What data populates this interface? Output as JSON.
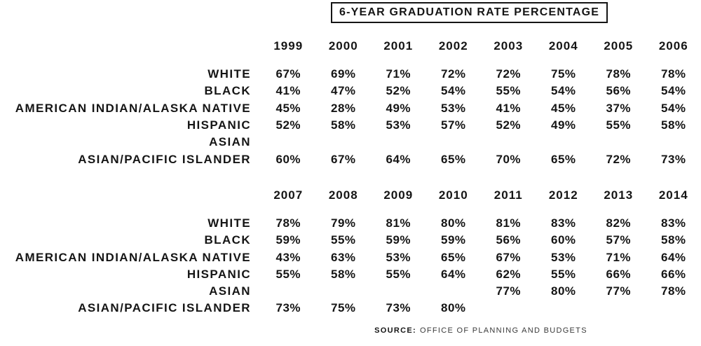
{
  "title": "6-YEAR GRADUATION RATE PERCENTAGE",
  "source": {
    "label": "SOURCE:",
    "text": "OFFICE OF PLANNING AND BUDGETS"
  },
  "chart_data": {
    "type": "table",
    "title": "6-YEAR GRADUATION RATE PERCENTAGE",
    "unit": "percent",
    "sections": [
      {
        "years": [
          "1999",
          "2000",
          "2001",
          "2002",
          "2003",
          "2004",
          "2005",
          "2006"
        ],
        "rows": [
          {
            "label": "WHITE",
            "values": [
              "67%",
              "69%",
              "71%",
              "72%",
              "72%",
              "75%",
              "78%",
              "78%"
            ]
          },
          {
            "label": "BLACK",
            "values": [
              "41%",
              "47%",
              "52%",
              "54%",
              "55%",
              "54%",
              "56%",
              "54%"
            ]
          },
          {
            "label": "AMERICAN INDIAN/ALASKA NATIVE",
            "values": [
              "45%",
              "28%",
              "49%",
              "53%",
              "41%",
              "45%",
              "37%",
              "54%"
            ]
          },
          {
            "label": "HISPANIC",
            "values": [
              "52%",
              "58%",
              "53%",
              "57%",
              "52%",
              "49%",
              "55%",
              "58%"
            ]
          },
          {
            "label": "ASIAN",
            "values": [
              "",
              "",
              "",
              "",
              "",
              "",
              "",
              ""
            ]
          },
          {
            "label": "ASIAN/PACIFIC ISLANDER",
            "values": [
              "60%",
              "67%",
              "64%",
              "65%",
              "70%",
              "65%",
              "72%",
              "73%"
            ]
          }
        ]
      },
      {
        "years": [
          "2007",
          "2008",
          "2009",
          "2010",
          "2011",
          "2012",
          "2013",
          "2014"
        ],
        "rows": [
          {
            "label": "WHITE",
            "values": [
              "78%",
              "79%",
              "81%",
              "80%",
              "81%",
              "83%",
              "82%",
              "83%"
            ]
          },
          {
            "label": "BLACK",
            "values": [
              "59%",
              "55%",
              "59%",
              "59%",
              "56%",
              "60%",
              "57%",
              "58%"
            ]
          },
          {
            "label": "AMERICAN INDIAN/ALASKA NATIVE",
            "values": [
              "43%",
              "63%",
              "53%",
              "65%",
              "67%",
              "53%",
              "71%",
              "64%"
            ]
          },
          {
            "label": "HISPANIC",
            "values": [
              "55%",
              "58%",
              "55%",
              "64%",
              "62%",
              "55%",
              "66%",
              "66%"
            ]
          },
          {
            "label": "ASIAN",
            "values": [
              "",
              "",
              "",
              "",
              "77%",
              "80%",
              "77%",
              "78%"
            ]
          },
          {
            "label": "ASIAN/PACIFIC ISLANDER",
            "values": [
              "73%",
              "75%",
              "73%",
              "80%",
              "",
              "",
              "",
              ""
            ]
          }
        ]
      }
    ],
    "colors": {
      "text": "#151515",
      "background": "#ffffff"
    }
  }
}
